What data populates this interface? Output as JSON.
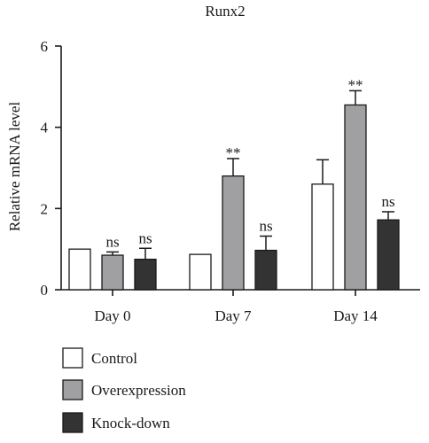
{
  "chart_data": {
    "type": "bar",
    "title": "Runx2",
    "xlabel": "",
    "ylabel": "Relative mRNA level",
    "ylim": [
      0,
      6
    ],
    "yticks": [
      "0",
      "2",
      "4",
      "6"
    ],
    "categories": [
      "Day 0",
      "Day 7",
      "Day 14"
    ],
    "grid": false,
    "legend_position": "bottom-left",
    "series": [
      {
        "name": "Control",
        "color": "#ffffff",
        "values": [
          1.0,
          0.87,
          2.6
        ],
        "errors": [
          0,
          0,
          0.6
        ],
        "labels": [
          "",
          "",
          ""
        ]
      },
      {
        "name": "Overexpression",
        "color": "#a0a0a2",
        "values": [
          0.85,
          2.8,
          4.55
        ],
        "errors": [
          0.08,
          0.43,
          0.35
        ],
        "labels": [
          "ns",
          "**",
          "**"
        ]
      },
      {
        "name": "Knock-down",
        "color": "#333333",
        "values": [
          0.75,
          0.97,
          1.72
        ],
        "errors": [
          0.27,
          0.35,
          0.2
        ],
        "labels": [
          "ns",
          "ns",
          "ns"
        ]
      }
    ]
  }
}
